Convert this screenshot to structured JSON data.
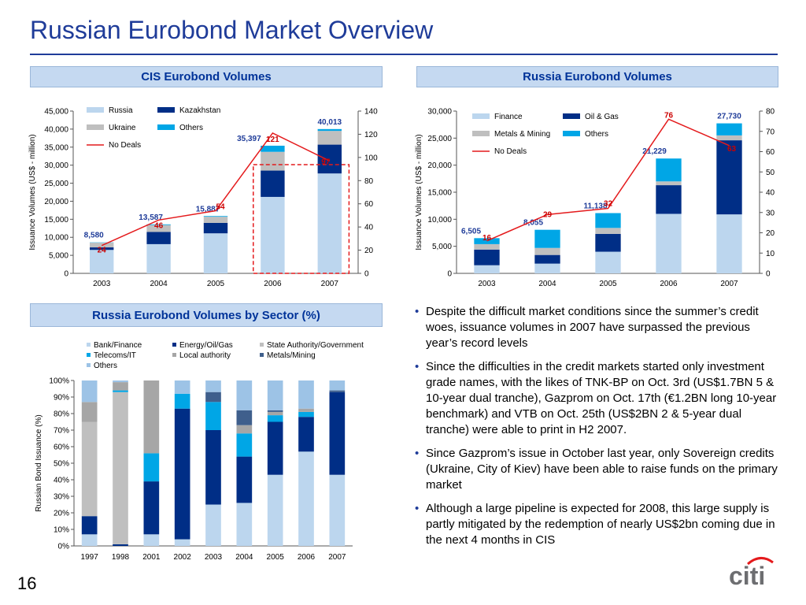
{
  "page": {
    "title": "Russian Eurobond Market Overview",
    "page_number": "16",
    "logo_text": "citi",
    "colors": {
      "russia_finance": "#bcd6ee",
      "kaz_oil": "#002e86",
      "ukraine_metals": "#bfbfbf",
      "others": "#00a6e6",
      "deals": "#e41a1c",
      "label_blue": "#1f3c99",
      "label_red": "#cc0000"
    }
  },
  "panels": {
    "cis_header": "CIS Eurobond Volumes",
    "russia_header": "Russia Eurobond Volumes",
    "sector_header": "Russia Eurobond Volumes by Sector (%)"
  },
  "bullets": [
    "Despite the difficult market conditions since the summer’s credit woes, issuance volumes in 2007 have surpassed the previous year’s record levels",
    "Since the difficulties in the credit markets started only investment grade names, with the likes of  TNK-BP on Oct. 3rd (US$1.7BN 5 & 10-year dual tranche), Gazprom on Oct. 17th (€1.2BN long 10-year benchmark) and VTB on Oct. 25th (US$2BN 2 & 5-year dual tranche) were able to print in H2 2007.",
    "Since Gazprom’s issue in October last year, only Sovereign credits (Ukraine, City of Kiev) have been able to raise funds on the primary market",
    "Although a large pipeline is expected for 2008, this large supply is partly mitigated by the redemption of nearly US$2bn coming due in the next 4 months in CIS"
  ],
  "chart_data": [
    {
      "type": "bar",
      "stacked": true,
      "categories": [
        "2003",
        "2004",
        "2005",
        "2006",
        "2007"
      ],
      "series": [
        {
          "name": "Russia",
          "values": [
            6500,
            8100,
            11100,
            21200,
            27700
          ]
        },
        {
          "name": "Kazakhstan",
          "values": [
            700,
            3400,
            2900,
            7300,
            8000
          ]
        },
        {
          "name": "Ukraine",
          "values": [
            1300,
            1900,
            1700,
            5200,
            3800
          ]
        },
        {
          "name": "Others",
          "values": [
            80,
            187,
            187,
            1697,
            513
          ]
        }
      ],
      "line": {
        "name": "No Deals",
        "values": [
          24,
          46,
          54,
          121,
          97
        ],
        "axis": "right"
      },
      "totals": [
        "8,580",
        "13,587",
        "15,887",
        "35,397",
        "40,013"
      ],
      "ylabel": "Issuance Volumes (US$ - million)",
      "ylim": [
        0,
        45000
      ],
      "y_ticks": [
        "0",
        "5,000",
        "10,000",
        "15,000",
        "20,000",
        "25,000",
        "30,000",
        "35,000",
        "40,000",
        "45,000"
      ],
      "y2lim": [
        0,
        140
      ],
      "y2_ticks": [
        "0",
        "20",
        "40",
        "60",
        "80",
        "100",
        "120",
        "140"
      ],
      "legend": "top-left",
      "highlight_years": [
        "2006",
        "2007"
      ]
    },
    {
      "type": "bar",
      "stacked": true,
      "categories": [
        "2003",
        "2004",
        "2005",
        "2006",
        "2007"
      ],
      "series": [
        {
          "name": "Finance",
          "values": [
            1500,
            1800,
            4000,
            11000,
            10900
          ]
        },
        {
          "name": "Oil & Gas",
          "values": [
            2900,
            1600,
            3300,
            5300,
            13700
          ]
        },
        {
          "name": "Metals & Mining",
          "values": [
            1000,
            1300,
            1100,
            700,
            900
          ]
        },
        {
          "name": "Others",
          "values": [
            1105,
            3355,
            2738,
            4229,
            2230
          ]
        }
      ],
      "line": {
        "name": "No Deals",
        "values": [
          16,
          29,
          32,
          76,
          63
        ],
        "axis": "right"
      },
      "totals": [
        "6,505",
        "8,055",
        "11,138",
        "21,229",
        "27,730"
      ],
      "ylabel": "Issuance Volumes (US$ - million)",
      "ylim": [
        0,
        30000
      ],
      "y_ticks": [
        "0",
        "5,000",
        "10,000",
        "15,000",
        "20,000",
        "25,000",
        "30,000"
      ],
      "y2lim": [
        0,
        80
      ],
      "y2_ticks": [
        "0",
        "10",
        "20",
        "30",
        "40",
        "50",
        "60",
        "70",
        "80"
      ],
      "legend": "top-left"
    },
    {
      "type": "bar",
      "stacked": true,
      "percent": true,
      "categories": [
        "1997",
        "1998",
        "2001",
        "2002",
        "2003",
        "2004",
        "2005",
        "2006",
        "2007"
      ],
      "series": [
        {
          "name": "Bank/Finance",
          "values": [
            7,
            0,
            7,
            4,
            25,
            26,
            43,
            57,
            43
          ]
        },
        {
          "name": "Energy/Oil/Gas",
          "values": [
            11,
            1,
            32,
            79,
            45,
            28,
            32,
            21,
            50
          ]
        },
        {
          "name": "State Authority/Government",
          "values": [
            57,
            92,
            0,
            0,
            0,
            0,
            0,
            0,
            0
          ]
        },
        {
          "name": "Telecoms/IT",
          "values": [
            0,
            1,
            17,
            9,
            17,
            14,
            4,
            3,
            0
          ]
        },
        {
          "name": "Local authority",
          "values": [
            12,
            5,
            44,
            0,
            0,
            5,
            2,
            2,
            0
          ]
        },
        {
          "name": "Metals/Mining",
          "values": [
            0,
            0,
            0,
            0,
            6,
            9,
            1,
            0,
            1
          ]
        },
        {
          "name": "Others",
          "values": [
            13,
            1,
            0,
            8,
            7,
            18,
            18,
            17,
            6
          ]
        }
      ],
      "ylabel": "Russian Bond Issuance (%)",
      "ylim": [
        0,
        100
      ],
      "y_ticks": [
        "0%",
        "10%",
        "20%",
        "30%",
        "40%",
        "50%",
        "60%",
        "70%",
        "80%",
        "90%",
        "100%"
      ],
      "legend": "top"
    }
  ]
}
